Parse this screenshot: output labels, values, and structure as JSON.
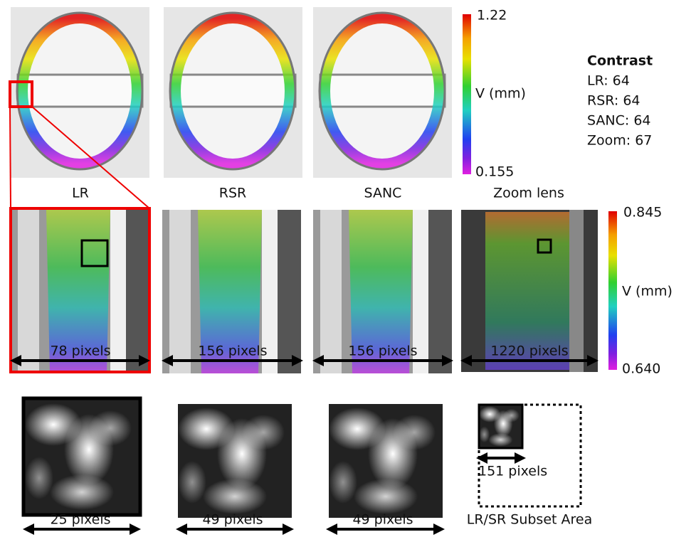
{
  "top_row": {
    "labels": [
      "LR",
      "RSR",
      "SANC",
      "Zoom lens"
    ]
  },
  "colorbar_top": {
    "max": "1.22",
    "label": "V (mm)",
    "min": "0.155"
  },
  "contrast": {
    "title": "Contrast",
    "items": [
      "LR: 64",
      "RSR: 64",
      "SANC: 64",
      "Zoom: 67"
    ]
  },
  "colorbar_bottom": {
    "max": "0.845",
    "label": "V (mm)",
    "min": "0.640"
  },
  "middle_row": {
    "scales": [
      "78 pixels",
      "156 pixels",
      "156 pixels",
      "1220 pixels"
    ]
  },
  "bottom_row": {
    "scales": [
      "25 pixels",
      "49 pixels",
      "49 pixels",
      "151 pixels"
    ],
    "subset_caption": "LR/SR Subset Area"
  }
}
